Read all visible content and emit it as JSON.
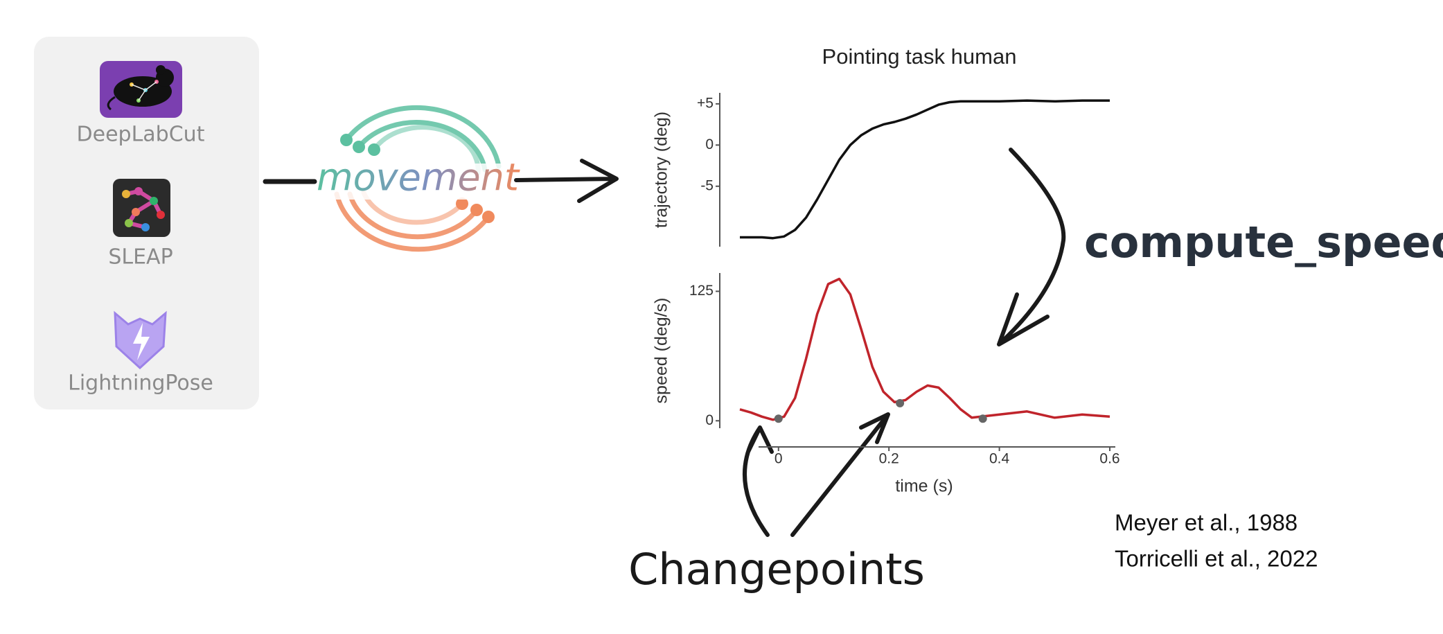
{
  "tools": [
    "DeepLabCut",
    "SLEAP",
    "LightningPose"
  ],
  "logo": "movement",
  "chart_data": [
    {
      "type": "line",
      "title": "Pointing task human",
      "y_label": "trajectory (deg)",
      "x": [
        -0.07,
        -0.05,
        -0.03,
        -0.01,
        0.01,
        0.03,
        0.05,
        0.07,
        0.09,
        0.11,
        0.13,
        0.15,
        0.17,
        0.19,
        0.21,
        0.23,
        0.25,
        0.27,
        0.29,
        0.31,
        0.33,
        0.35,
        0.4,
        0.45,
        0.5,
        0.55,
        0.6
      ],
      "series": [
        {
          "color": "#111111",
          "values": [
            -11.2,
            -11.2,
            -11.2,
            -11.3,
            -11.1,
            -10.3,
            -8.8,
            -6.6,
            -4.2,
            -1.8,
            0.0,
            1.2,
            2.0,
            2.5,
            2.8,
            3.2,
            3.7,
            4.3,
            4.9,
            5.2,
            5.3,
            5.3,
            5.3,
            5.4,
            5.3,
            5.4,
            5.4
          ]
        }
      ],
      "xlim": [
        -0.075,
        0.61
      ],
      "ylim": [
        -12,
        6
      ],
      "yticks": [
        {
          "value": 5,
          "label": "+5"
        },
        0,
        -5
      ]
    },
    {
      "type": "line",
      "y_label": "speed (deg/s)",
      "x_label": "time (s)",
      "x": [
        -0.07,
        -0.05,
        -0.03,
        -0.01,
        0.01,
        0.03,
        0.05,
        0.07,
        0.09,
        0.11,
        0.13,
        0.15,
        0.17,
        0.19,
        0.21,
        0.23,
        0.25,
        0.27,
        0.29,
        0.31,
        0.33,
        0.35,
        0.4,
        0.45,
        0.5,
        0.55,
        0.6
      ],
      "series": [
        {
          "color": "#c0242b",
          "values": [
            11,
            8,
            4,
            1,
            4,
            22,
            60,
            103,
            132,
            137,
            122,
            88,
            52,
            28,
            18,
            20,
            28,
            34,
            32,
            22,
            11,
            3,
            6,
            9,
            3,
            6,
            4
          ]
        }
      ],
      "markers": {
        "color": "#666666",
        "x": [
          0,
          0.22,
          0.37
        ],
        "values": [
          2,
          17,
          2
        ]
      },
      "xlim": [
        -0.075,
        0.61
      ],
      "ylim": [
        -4.5,
        140
      ],
      "xticks": [
        0,
        0.2,
        0.4,
        0.6
      ],
      "yticks": [
        125,
        0
      ]
    }
  ],
  "annotations": {
    "function": "compute_speed",
    "changepoints": "Changepoints"
  },
  "references": [
    "Meyer et al., 1988",
    "Torricelli et al., 2022"
  ]
}
